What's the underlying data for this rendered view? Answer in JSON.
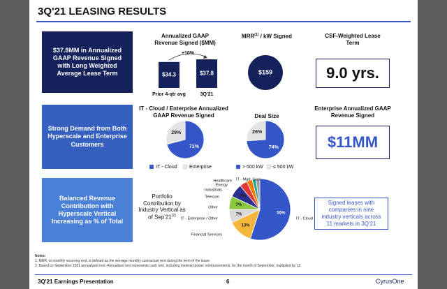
{
  "header": {
    "title": "3Q'21 LEASING RESULTS"
  },
  "rows": [
    {
      "summary": "$37.8MM in Annualized GAAP Revenue Signed with Long Weighted Average Lease Term"
    },
    {
      "summary": "Strong Demand from Both Hyperscale and Enterprise Customers"
    },
    {
      "summary": "Balanced Revenue Contribution with Hyperscale Vertical Increasing as % of Total"
    }
  ],
  "mrr": {
    "title": "MRR",
    "title_note": "(1)",
    "title_rest": " / kW Signed",
    "value": "$159"
  },
  "lease_term": {
    "title": "CSF-Weighted Lease Term",
    "value": "9.0 yrs."
  },
  "enterprise": {
    "title": "Enterprise Annualized GAAP Revenue Signed",
    "value": "$11MM"
  },
  "callout": "Signed leases with companies in nine industry verticals across 11 markets in 3Q'21",
  "chart_data": [
    {
      "type": "bar",
      "title": "Annualized GAAP Revenue Signed ($MM)",
      "categories": [
        "Prior 4-qtr avg",
        "3Q'21"
      ],
      "values": [
        34.3,
        37.8
      ],
      "value_labels": [
        "$34.3",
        "$37.8"
      ],
      "color": "#14215a",
      "annotation": "+10%"
    },
    {
      "type": "pie",
      "title": "IT - Cloud / Enterprise Annualized GAAP Revenue Signed",
      "categories": [
        "IT - Cloud",
        "Enterprise"
      ],
      "values": [
        71,
        29
      ],
      "value_labels": [
        "71%",
        "29%"
      ],
      "colors": [
        "#3556c8",
        "#e4e4e4"
      ]
    },
    {
      "type": "pie",
      "title": "Deal Size",
      "categories": [
        "> 500 kW",
        "≤ 500 kW"
      ],
      "values": [
        74,
        26
      ],
      "value_labels": [
        "74%",
        "26%"
      ],
      "colors": [
        "#3556c8",
        "#e4e4e4"
      ]
    },
    {
      "type": "pie",
      "title": "Portfolio Contribution by Industry Vertical as of Sep'21",
      "title_note": "(2)",
      "categories": [
        "IT - Cloud",
        "Financial Services",
        "IT - Enterprise / Other",
        "Other",
        "Telecom",
        "Industrials",
        "Energy",
        "Healthcare",
        "IT - Mgd. Svcs."
      ],
      "values": [
        55,
        13,
        7,
        7,
        7,
        4,
        3,
        2,
        2
      ],
      "value_labels": [
        "55%",
        "13%",
        "7%",
        "7%",
        "7%",
        null,
        null,
        null,
        null
      ],
      "colors": [
        "#3556c8",
        "#f4b73c",
        "#d9d9d9",
        "#8cc63f",
        "#2b2f8f",
        "#e53935",
        "#f57c00",
        "#26a69a",
        "#9e9e9e"
      ]
    }
  ],
  "notes": {
    "heading": "Notes:",
    "items": [
      "1.  MRR, or monthly recurring rent, is defined as the average monthly contractual rent during the term of the lease.",
      "2.  Based on September 2021 annualized rent. Annualized rent represents cash rent, including metered power reimbursements, for the month of September, multiplied by 12."
    ]
  },
  "footer": {
    "left": "3Q'21 Earnings Presentation",
    "page": "6",
    "brand": "CyrusOne"
  }
}
